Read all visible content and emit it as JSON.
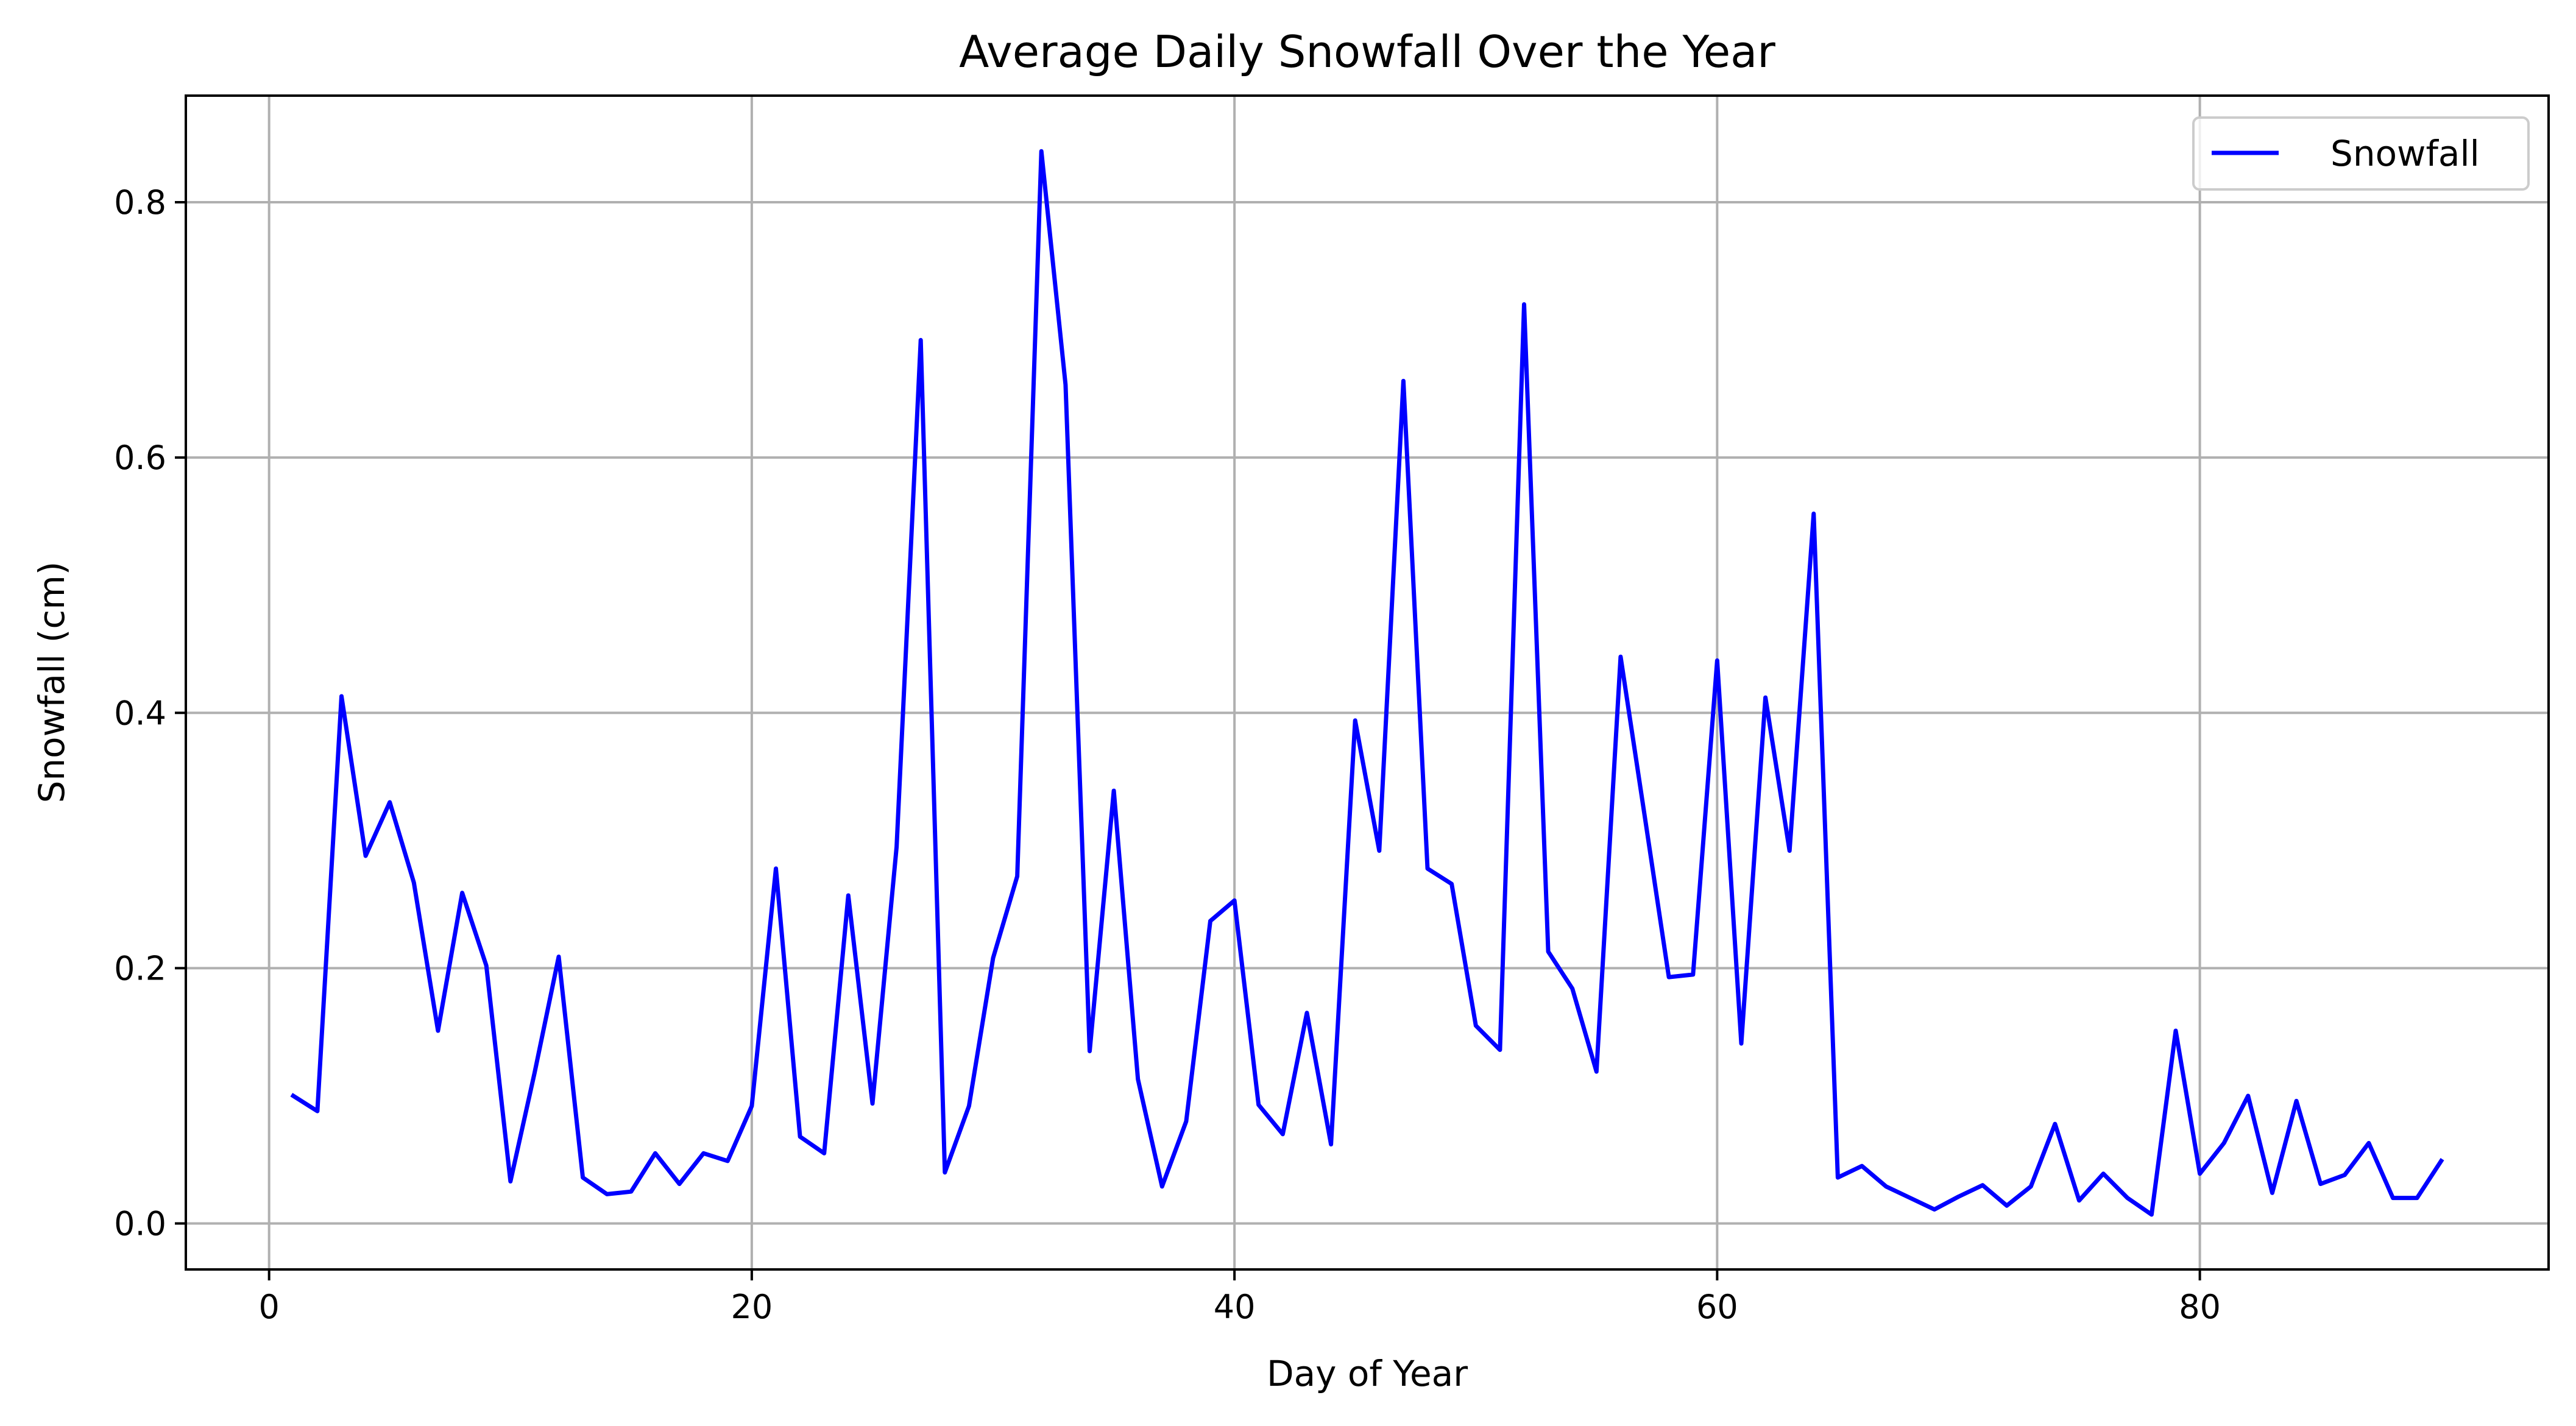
{
  "chart_data": {
    "type": "line",
    "title": "Average Daily Snowfall Over the Year",
    "xlabel": "Day of Year",
    "ylabel": "Snowfall (cm)",
    "xlim": [
      -3.45,
      94.45
    ],
    "ylim": [
      -0.036,
      0.8835
    ],
    "grid": true,
    "legend_position": "top-right",
    "x_ticks": [
      0,
      20,
      40,
      60,
      80
    ],
    "y_ticks": [
      0.0,
      0.2,
      0.4,
      0.6,
      0.8
    ],
    "x_tick_labels": [
      "0",
      "20",
      "40",
      "60",
      "80"
    ],
    "y_tick_labels": [
      "0.0",
      "0.2",
      "0.4",
      "0.6",
      "0.8"
    ],
    "series": [
      {
        "name": "Snowfall",
        "color": "#0000ff",
        "x": [
          1,
          2,
          3,
          4,
          5,
          6,
          7,
          8,
          9,
          10,
          11,
          12,
          13,
          14,
          15,
          16,
          17,
          18,
          19,
          20,
          21,
          22,
          23,
          24,
          25,
          26,
          27,
          28,
          29,
          30,
          31,
          32,
          33,
          34,
          35,
          36,
          37,
          38,
          39,
          40,
          41,
          42,
          43,
          44,
          45,
          46,
          47,
          48,
          49,
          50,
          51,
          52,
          53,
          54,
          55,
          56,
          57,
          58,
          59,
          60,
          61,
          62,
          63,
          64,
          65,
          66,
          67,
          68,
          69,
          70,
          71,
          72,
          73,
          74,
          75,
          76,
          77,
          78,
          79,
          80,
          81,
          82,
          83,
          84,
          85,
          86,
          87,
          88,
          89,
          90
        ],
        "values": [
          0.1,
          0.088,
          0.413,
          0.288,
          0.33,
          0.267,
          0.151,
          0.259,
          0.202,
          0.033,
          0.118,
          0.209,
          0.036,
          0.023,
          0.025,
          0.055,
          0.031,
          0.055,
          0.049,
          0.092,
          0.278,
          0.068,
          0.055,
          0.257,
          0.094,
          0.295,
          0.692,
          0.04,
          0.092,
          0.208,
          0.272,
          0.84,
          0.657,
          0.135,
          0.339,
          0.113,
          0.029,
          0.08,
          0.237,
          0.253,
          0.093,
          0.07,
          0.165,
          0.062,
          0.394,
          0.292,
          0.66,
          0.278,
          0.266,
          0.155,
          0.136,
          0.72,
          0.213,
          0.184,
          0.119,
          0.444,
          0.319,
          0.193,
          0.195,
          0.441,
          0.141,
          0.412,
          0.292,
          0.556,
          0.036,
          0.045,
          0.029,
          0.02,
          0.011,
          0.021,
          0.03,
          0.014,
          0.029,
          0.078,
          0.018,
          0.039,
          0.02,
          0.007,
          0.151,
          0.039,
          0.063,
          0.1,
          0.024,
          0.096,
          0.031,
          0.038,
          0.063,
          0.02,
          0.02,
          0.049
        ]
      }
    ]
  }
}
